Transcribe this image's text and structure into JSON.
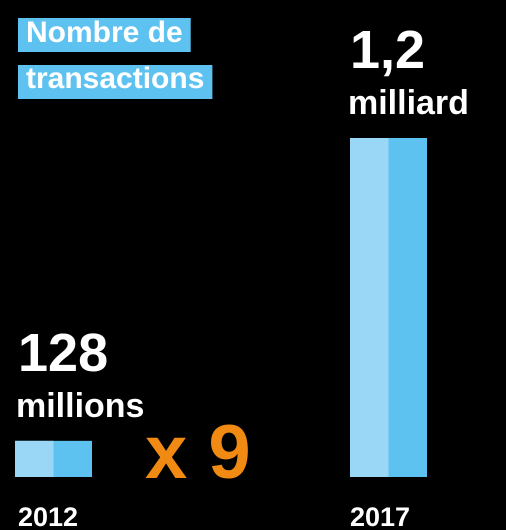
{
  "chart_data": {
    "type": "bar",
    "title": [
      "Nombre de",
      "transactions"
    ],
    "categories": [
      "2012",
      "2017"
    ],
    "values": [
      128,
      1200
    ],
    "value_labels": [
      [
        "128",
        "millions"
      ],
      [
        "1,2",
        "milliard"
      ]
    ],
    "colors": [
      "#9ad6f6",
      "#5ec2f0"
    ],
    "ylim": [
      0,
      1200
    ],
    "annotation": "x 9",
    "annotation_color": "#f08a12"
  }
}
